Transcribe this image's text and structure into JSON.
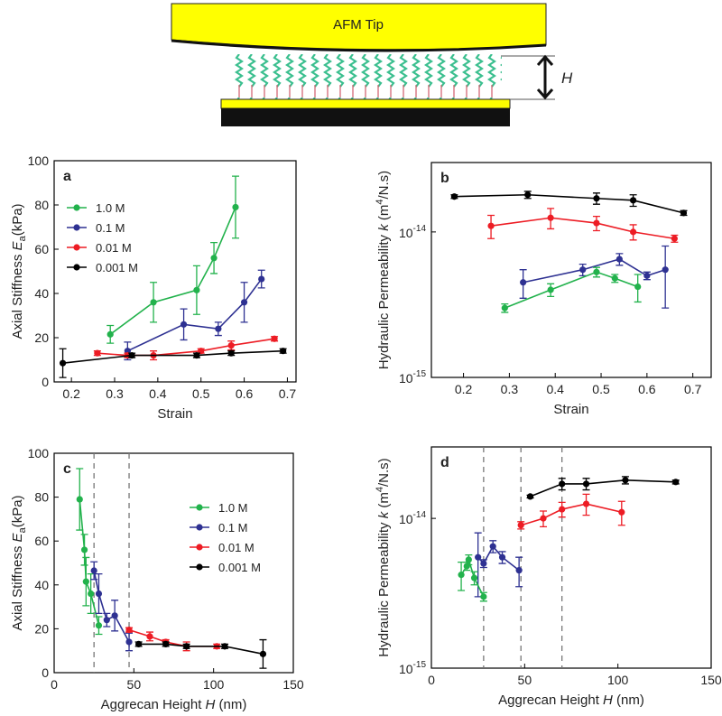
{
  "diagram": {
    "tip_label": "AFM Tip",
    "height_label": "H"
  },
  "chart_data": [
    {
      "type": "line",
      "panel_label": "a",
      "x_label": [
        {
          "text": "Strain"
        }
      ],
      "y_label": [
        {
          "text": "Axial Stiffness "
        },
        {
          "text": "E",
          "style": "italic"
        },
        {
          "text": "a",
          "style": "sub"
        },
        {
          "text": "(kPa)"
        }
      ],
      "xlim": [
        0.16,
        0.72
      ],
      "xticks": [
        0.2,
        0.3,
        0.4,
        0.5,
        0.6,
        0.7
      ],
      "ylim": [
        0,
        100
      ],
      "yticks": [
        0,
        20,
        40,
        60,
        80,
        100
      ],
      "legend": "upper left",
      "series": [
        {
          "name": "1.0 M",
          "color": "#22b24c",
          "x": [
            0.29,
            0.39,
            0.49,
            0.53,
            0.58
          ],
          "values": [
            21.5,
            36,
            41.5,
            56,
            79
          ],
          "errors": [
            4,
            9,
            11,
            7,
            14
          ]
        },
        {
          "name": "0.1 M",
          "color": "#2e3192",
          "x": [
            0.33,
            0.46,
            0.54,
            0.6,
            0.64
          ],
          "values": [
            14,
            26,
            24,
            36,
            46.5
          ],
          "errors": [
            4,
            7,
            3,
            9,
            4
          ]
        },
        {
          "name": "0.01 M",
          "color": "#ed1c24",
          "x": [
            0.26,
            0.33,
            0.39,
            0.5,
            0.57,
            0.67
          ],
          "values": [
            13,
            12,
            12,
            14,
            16.5,
            19.5
          ],
          "errors": [
            1,
            1,
            2,
            1,
            2,
            1
          ]
        },
        {
          "name": "0.001 M",
          "color": "#000000",
          "x": [
            0.18,
            0.34,
            0.49,
            0.57,
            0.69
          ],
          "values": [
            8.5,
            12,
            12,
            13,
            14
          ],
          "errors": [
            6.5,
            1,
            1,
            1,
            1
          ]
        }
      ]
    },
    {
      "type": "line",
      "panel_label": "b",
      "x_label": [
        {
          "text": "Strain"
        }
      ],
      "y_label": [
        {
          "text": "Hydraulic Permeability "
        },
        {
          "text": "k",
          "style": "italic"
        },
        {
          "text": " (m"
        },
        {
          "text": "4",
          "style": "sup"
        },
        {
          "text": "/N.s)"
        }
      ],
      "xlim": [
        0.13,
        0.74
      ],
      "xticks": [
        0.2,
        0.3,
        0.4,
        0.5,
        0.6,
        0.7
      ],
      "yscale": "log",
      "ylim": [
        1e-15,
        3e-14
      ],
      "yticks": [
        {
          "value": 1e-15,
          "label": "10",
          "exponent": "-15"
        },
        {
          "value": 1e-14,
          "label": "10",
          "exponent": "-14"
        }
      ],
      "series": [
        {
          "color": "#000000",
          "x": [
            0.18,
            0.34,
            0.49,
            0.57,
            0.68
          ],
          "values": [
            1.75e-14,
            1.8e-14,
            1.7e-14,
            1.65e-14,
            1.35e-14
          ],
          "errors": [
            5e-16,
            1e-15,
            1.5e-15,
            1.5e-15,
            5e-16
          ]
        },
        {
          "color": "#ed1c24",
          "x": [
            0.26,
            0.39,
            0.49,
            0.57,
            0.66
          ],
          "values": [
            1.1e-14,
            1.25e-14,
            1.15e-14,
            1e-14,
            9e-15
          ],
          "errors": [
            2e-15,
            2e-15,
            1.3e-15,
            1.2e-15,
            5e-16
          ]
        },
        {
          "color": "#2e3192",
          "x": [
            0.33,
            0.46,
            0.54,
            0.6,
            0.64
          ],
          "values": [
            4.5e-15,
            5.5e-15,
            6.5e-15,
            5e-15,
            5.5e-15
          ],
          "errors": [
            1e-15,
            5e-16,
            6e-16,
            3e-16,
            2.5e-15
          ]
        },
        {
          "color": "#22b24c",
          "x": [
            0.29,
            0.39,
            0.49,
            0.53,
            0.58
          ],
          "values": [
            3e-15,
            4e-15,
            5.3e-15,
            4.8e-15,
            4.2e-15
          ],
          "errors": [
            2e-16,
            4e-16,
            4e-16,
            3e-16,
            9e-16
          ]
        }
      ]
    },
    {
      "type": "line",
      "panel_label": "c",
      "x_label": [
        {
          "text": "Aggrecan Height "
        },
        {
          "text": "H",
          "style": "italic"
        },
        {
          "text": " (nm)"
        }
      ],
      "y_label": [
        {
          "text": "Axial Stiffness "
        },
        {
          "text": "E",
          "style": "italic"
        },
        {
          "text": "a",
          "style": "sub"
        },
        {
          "text": "(kPa)"
        }
      ],
      "xlim": [
        0,
        150
      ],
      "xticks": [
        0,
        50,
        100,
        150
      ],
      "ylim": [
        0,
        100
      ],
      "yticks": [
        0,
        20,
        40,
        60,
        80,
        100
      ],
      "reference_lines": [
        25,
        47
      ],
      "legend": "center right",
      "series": [
        {
          "name": "1.0 M",
          "color": "#22b24c",
          "x": [
            16,
            19,
            20,
            23,
            28
          ],
          "values": [
            79,
            56,
            41.5,
            36,
            21.5
          ],
          "errors": [
            14,
            7,
            11,
            9,
            4
          ]
        },
        {
          "name": "0.1 M",
          "color": "#2e3192",
          "x": [
            25,
            28,
            33,
            38,
            47
          ],
          "values": [
            46.5,
            36,
            24,
            26,
            14
          ],
          "errors": [
            4,
            9,
            3,
            7,
            4
          ]
        },
        {
          "name": "0.01 M",
          "color": "#ed1c24",
          "x": [
            47,
            60,
            70,
            83,
            102
          ],
          "values": [
            19.5,
            16.5,
            14,
            12,
            12
          ],
          "errors": [
            1,
            2,
            1,
            2,
            1
          ]
        },
        {
          "name": "0.001 M",
          "color": "#000000",
          "x": [
            53,
            70,
            83,
            107,
            131
          ],
          "values": [
            13,
            13,
            12,
            12,
            8.5
          ],
          "errors": [
            1,
            1,
            1,
            1,
            6.5
          ]
        }
      ]
    },
    {
      "type": "line",
      "panel_label": "d",
      "x_label": [
        {
          "text": "Aggrecan Height "
        },
        {
          "text": "H",
          "style": "italic"
        },
        {
          "text": " (nm)"
        }
      ],
      "y_label": [
        {
          "text": "Hydraulic Permeability "
        },
        {
          "text": "k",
          "style": "italic"
        },
        {
          "text": " (m"
        },
        {
          "text": "4",
          "style": "sup"
        },
        {
          "text": "/N.s)"
        }
      ],
      "xlim": [
        0,
        150
      ],
      "xticks": [
        0,
        50,
        100,
        150
      ],
      "yscale": "log",
      "ylim": [
        1e-15,
        3e-14
      ],
      "yticks": [
        {
          "value": 1e-15,
          "label": "10",
          "exponent": "-15"
        },
        {
          "value": 1e-14,
          "label": "10",
          "exponent": "-14"
        }
      ],
      "reference_lines": [
        28,
        48,
        70
      ],
      "series": [
        {
          "color": "#000000",
          "x": [
            53,
            70,
            83,
            104,
            131
          ],
          "values": [
            1.4e-14,
            1.7e-14,
            1.7e-14,
            1.8e-14,
            1.75e-14
          ],
          "errors": [
            3e-16,
            1.5e-15,
            1.5e-15,
            1e-15,
            5e-16
          ]
        },
        {
          "color": "#ed1c24",
          "x": [
            48,
            60,
            70,
            83,
            102
          ],
          "values": [
            9e-15,
            1e-14,
            1.15e-14,
            1.25e-14,
            1.1e-14
          ],
          "errors": [
            5e-16,
            1.2e-15,
            1.3e-15,
            2e-15,
            2e-15
          ]
        },
        {
          "color": "#2e3192",
          "x": [
            25,
            28,
            33,
            38,
            47
          ],
          "values": [
            5.5e-15,
            5e-15,
            6.5e-15,
            5.5e-15,
            4.5e-15
          ],
          "errors": [
            2.5e-15,
            3e-16,
            6e-16,
            5e-16,
            1e-15
          ]
        },
        {
          "color": "#22b24c",
          "x": [
            16,
            19,
            20,
            23,
            28
          ],
          "values": [
            4.2e-15,
            4.8e-15,
            5.3e-15,
            4e-15,
            3e-15
          ],
          "errors": [
            9e-16,
            3e-16,
            4e-16,
            4e-16,
            2e-16
          ]
        }
      ]
    }
  ]
}
